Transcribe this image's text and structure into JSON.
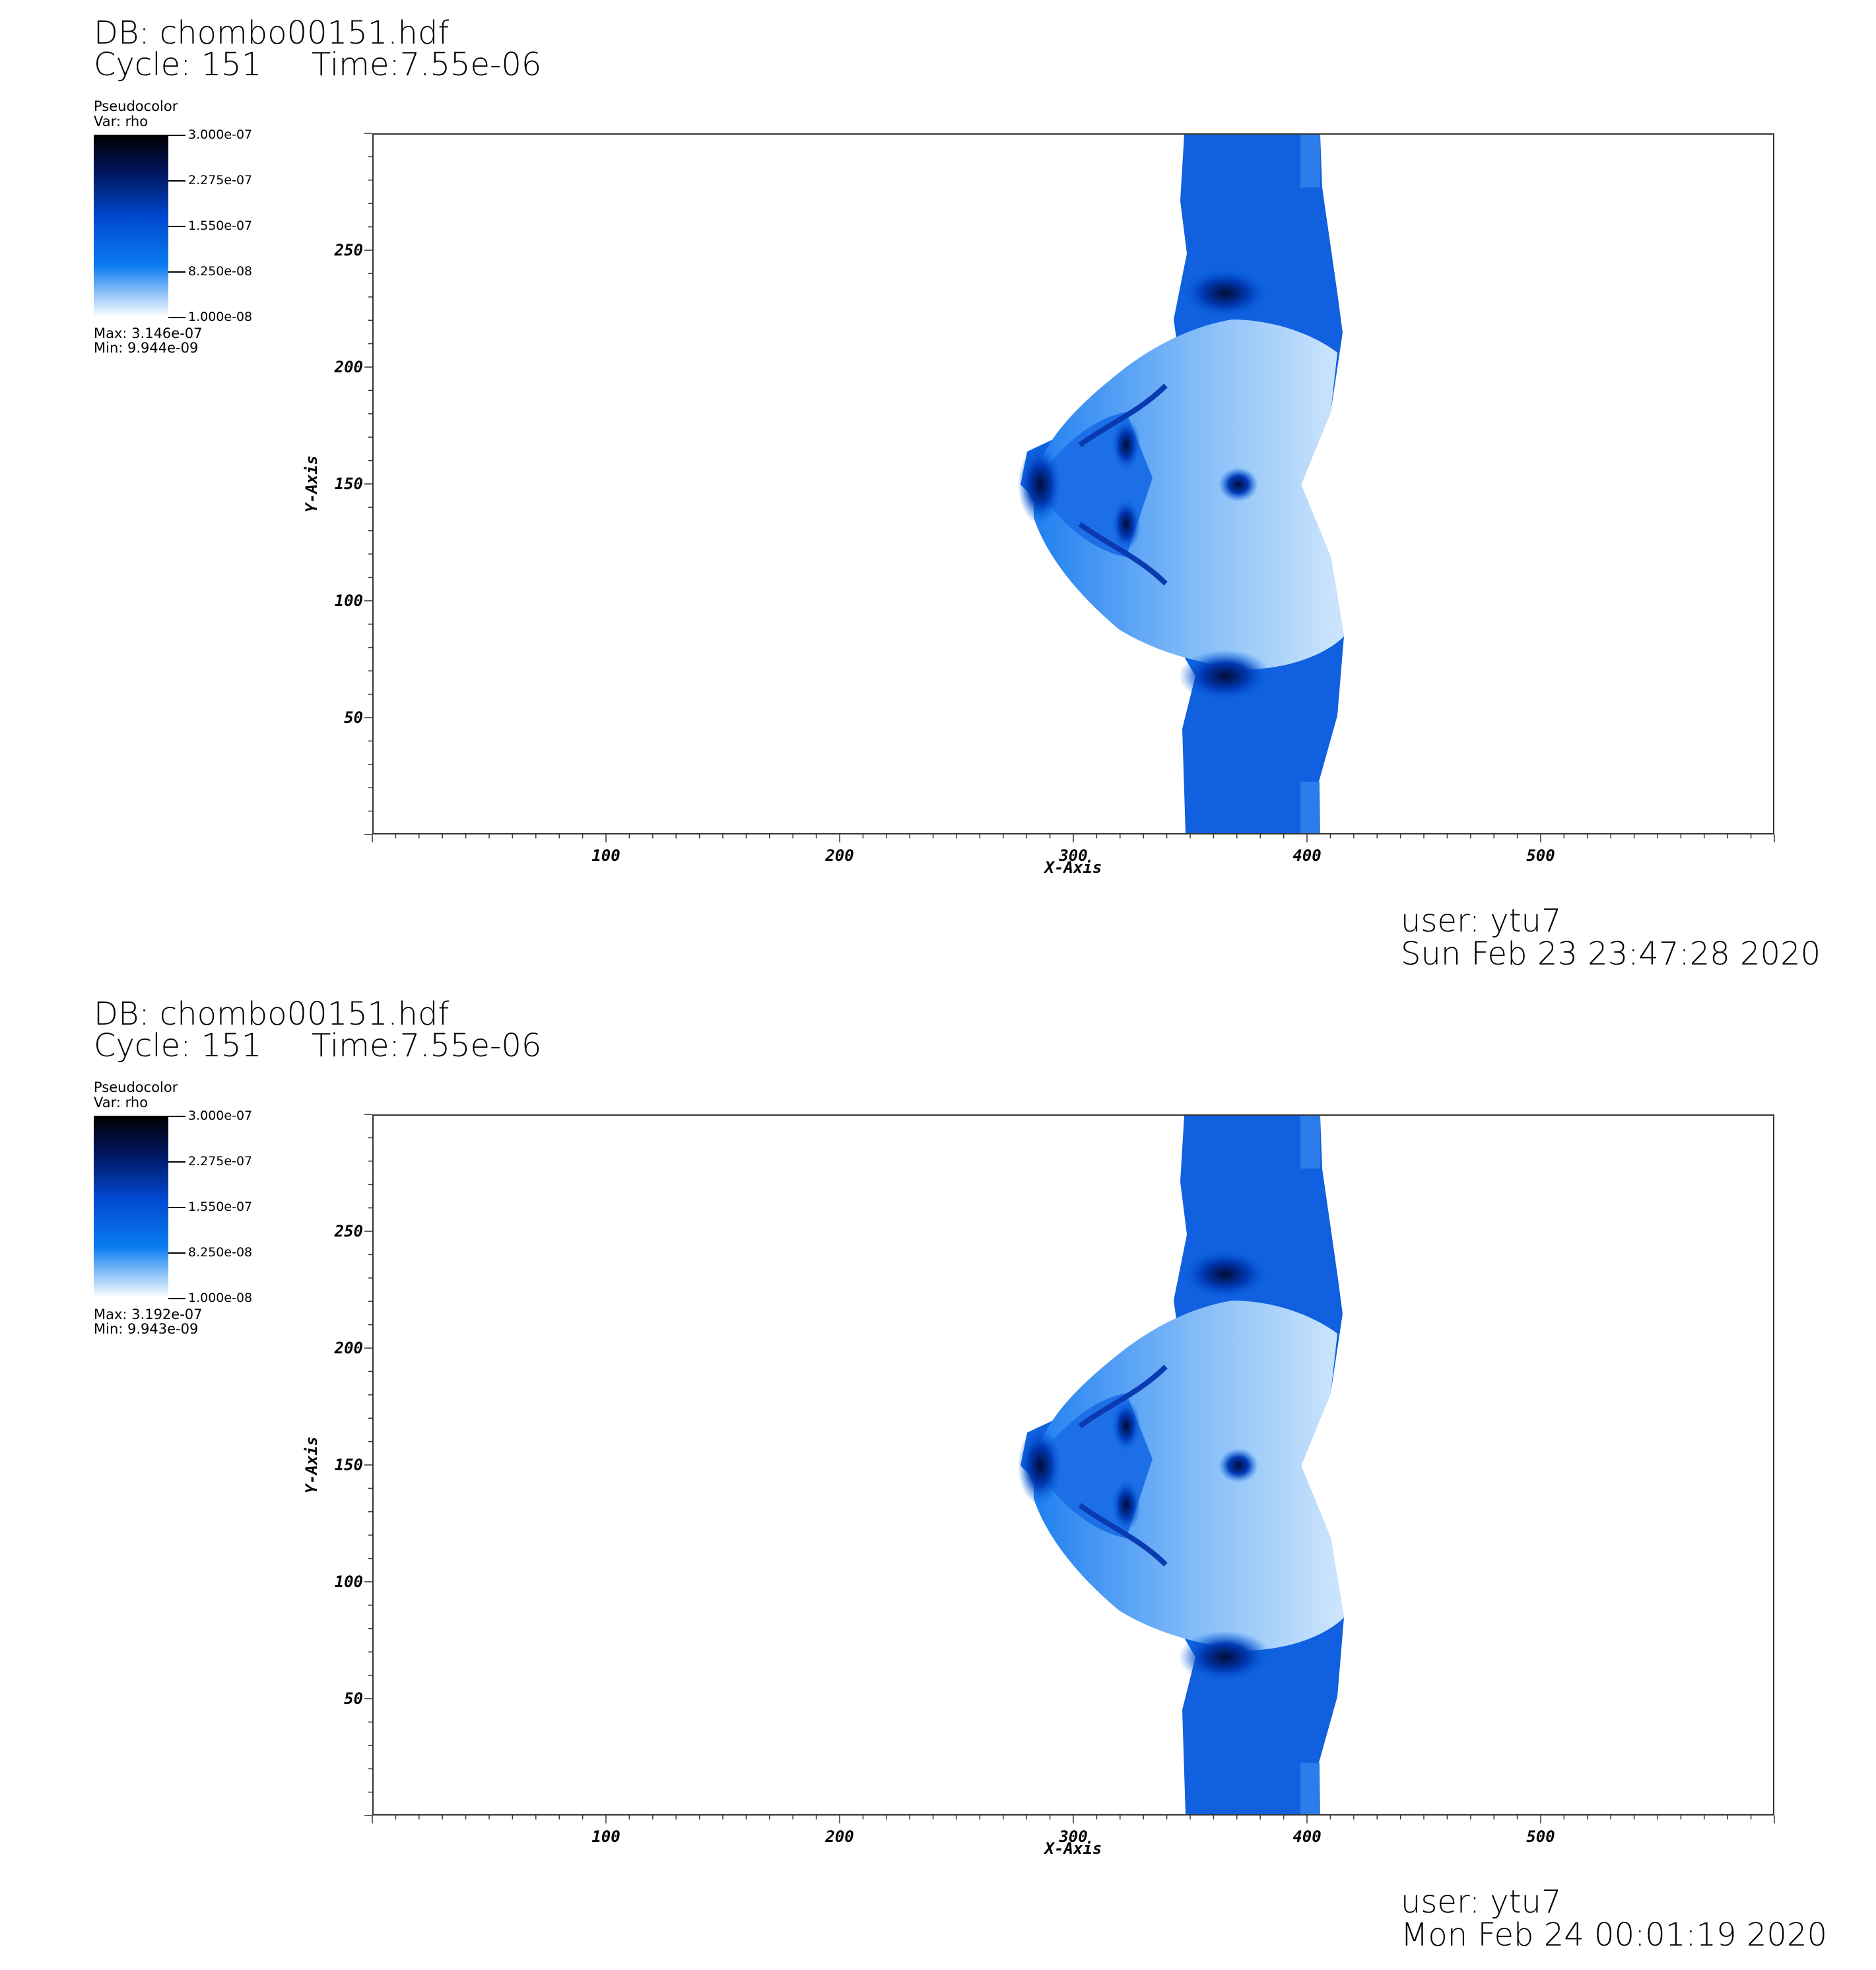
{
  "panels": [
    {
      "db": "DB: chombo00151.hdf",
      "cycle": "Cycle: 151",
      "time": "Time:7.55e-06",
      "legend": {
        "plot_type": "Pseudocolor",
        "var": "Var: rho",
        "ticks": [
          "3.000e-07",
          "2.275e-07",
          "1.550e-07",
          "8.250e-08",
          "1.000e-08"
        ],
        "max": "Max:  3.146e-07",
        "min": "Min:  9.944e-09"
      },
      "user": "user: ytu7",
      "date": "Sun Feb 23 23:47:28 2020"
    },
    {
      "db": "DB: chombo00151.hdf",
      "cycle": "Cycle: 151",
      "time": "Time:7.55e-06",
      "legend": {
        "plot_type": "Pseudocolor",
        "var": "Var: rho",
        "ticks": [
          "3.000e-07",
          "2.275e-07",
          "1.550e-07",
          "8.250e-08",
          "1.000e-08"
        ],
        "max": "Max:  3.192e-07",
        "min": "Min:  9.943e-09"
      },
      "user": "user: ytu7",
      "date": "Mon Feb 24 00:01:19 2020"
    }
  ],
  "chart_data": [
    {
      "type": "heatmap",
      "variable": "rho",
      "xlabel": "X-Axis",
      "ylabel": "Y-Axis",
      "xlim": [
        0,
        600
      ],
      "ylim": [
        0,
        300
      ],
      "xticks": [
        100,
        200,
        300,
        400,
        500
      ],
      "yticks": [
        50,
        100,
        150,
        200,
        250
      ],
      "colorbar_range": [
        1e-08,
        3e-07
      ],
      "colormap": [
        "#ffffff",
        "#0a7cf0",
        "#0048d0",
        "#000000"
      ],
      "data_max": 3.146e-07,
      "data_min": 9.944e-09
    },
    {
      "type": "heatmap",
      "variable": "rho",
      "xlabel": "X-Axis",
      "ylabel": "Y-Axis",
      "xlim": [
        0,
        600
      ],
      "ylim": [
        0,
        300
      ],
      "xticks": [
        100,
        200,
        300,
        400,
        500
      ],
      "yticks": [
        50,
        100,
        150,
        200,
        250
      ],
      "colorbar_range": [
        1e-08,
        3e-07
      ],
      "colormap": [
        "#ffffff",
        "#0a7cf0",
        "#0048d0",
        "#000000"
      ],
      "data_max": 3.192e-07,
      "data_min": 9.943e-09
    }
  ]
}
